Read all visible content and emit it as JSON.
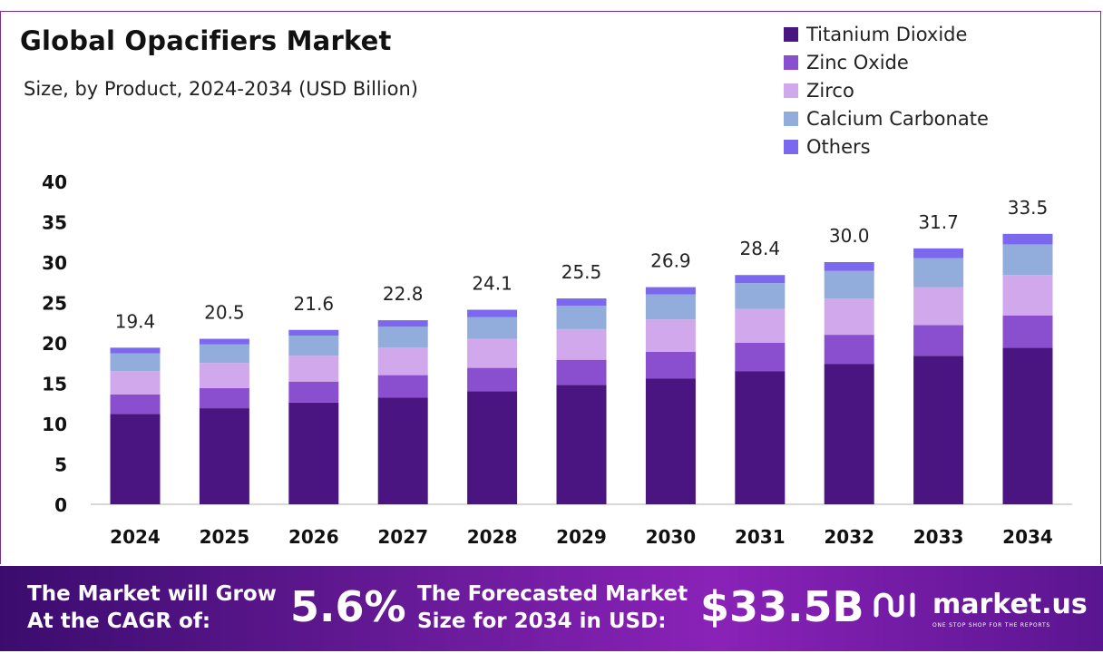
{
  "header": {
    "title": "Global Opacifiers Market",
    "subtitle": "Size, by Product, 2024-2034 (USD Billion)"
  },
  "chart_data": {
    "type": "bar",
    "stacked": true,
    "categories": [
      "2024",
      "2025",
      "2026",
      "2027",
      "2028",
      "2029",
      "2030",
      "2031",
      "2032",
      "2033",
      "2034"
    ],
    "series": [
      {
        "name": "Titanium Dioxide",
        "color": "#4a1580",
        "values": [
          11.2,
          11.9,
          12.6,
          13.2,
          14.0,
          14.8,
          15.6,
          16.5,
          17.4,
          18.4,
          19.4
        ]
      },
      {
        "name": "Zinc Oxide",
        "color": "#8a4fcf",
        "values": [
          2.4,
          2.5,
          2.6,
          2.8,
          2.9,
          3.1,
          3.3,
          3.5,
          3.6,
          3.8,
          4.0
        ]
      },
      {
        "name": "Zirco",
        "color": "#d2a8ec",
        "values": [
          2.9,
          3.1,
          3.2,
          3.4,
          3.6,
          3.8,
          4.0,
          4.2,
          4.5,
          4.7,
          5.0
        ]
      },
      {
        "name": "Calcium Carbonate",
        "color": "#92acdc",
        "values": [
          2.2,
          2.3,
          2.5,
          2.6,
          2.7,
          2.9,
          3.1,
          3.2,
          3.4,
          3.6,
          3.8
        ]
      },
      {
        "name": "Others",
        "color": "#7b68ee",
        "values": [
          0.7,
          0.7,
          0.7,
          0.8,
          0.9,
          0.9,
          0.9,
          1.0,
          1.1,
          1.2,
          1.3
        ]
      }
    ],
    "totals": [
      "19.4",
      "20.5",
      "21.6",
      "22.8",
      "24.1",
      "25.5",
      "26.9",
      "28.4",
      "30.0",
      "31.7",
      "33.5"
    ],
    "y_ticks": [
      "0",
      "5",
      "10",
      "15",
      "20",
      "25",
      "30",
      "35",
      "40"
    ],
    "ylim": [
      0,
      40
    ],
    "legend_position": "top-right",
    "grid": false
  },
  "footer": {
    "cagr_label_line1": "The Market will Grow",
    "cagr_label_line2": "At the CAGR of:",
    "cagr_value": "5.6%",
    "forecast_label_line1": "The Forecasted Market",
    "forecast_label_line2": "Size for 2034 in USD:",
    "forecast_value": "$33.5B",
    "logo_text": "market.us",
    "logo_tagline": "ONE STOP SHOP FOR THE REPORTS"
  }
}
